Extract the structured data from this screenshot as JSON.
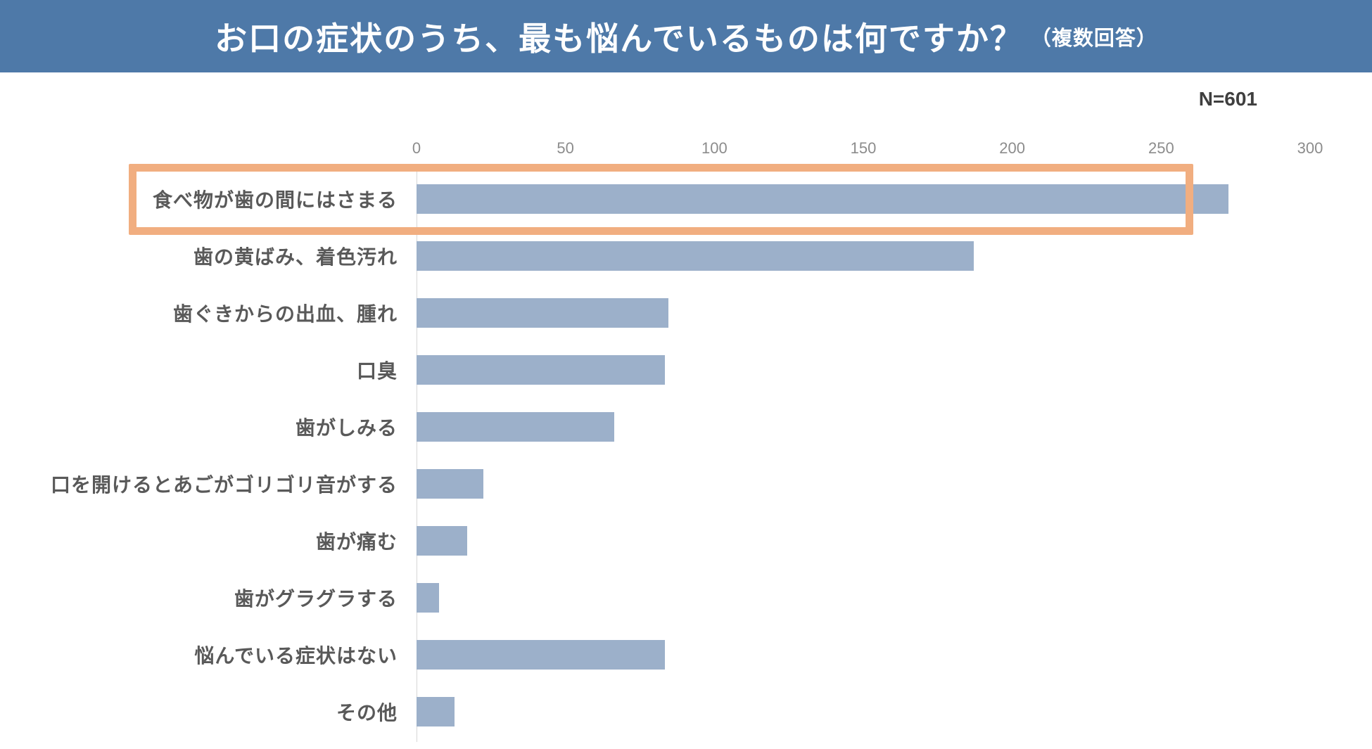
{
  "header": {
    "title": "お口の症状のうち、最も悩んでいるものは何ですか？",
    "title_suffix": "（複数回答）",
    "bg_color": "#4e79a8"
  },
  "sample_size_label": "N=601",
  "chart_data": {
    "type": "bar",
    "orientation": "horizontal",
    "title": "お口の症状のうち、最も悩んでいるものは何ですか？（複数回答）",
    "sample_size": "N=601",
    "categories": [
      "食べ物が歯の間にはさまる",
      "歯の黄ばみ、着色汚れ",
      "歯ぐきからの出血、腫れ",
      "口臭",
      "歯がしみる",
      "口を開けるとあごがゴリゴリ音がする",
      "歯が痛む",
      "歯がグラグラする",
      "悩んでいる症状はない",
      "その他"
    ],
    "values": [
      255,
      175,
      79,
      78,
      62,
      21,
      16,
      7,
      78,
      12
    ],
    "xlim": [
      0,
      300
    ],
    "x_ticks": [
      0,
      50,
      100,
      150,
      200,
      250,
      300
    ],
    "xlabel": "",
    "ylabel": "",
    "grid": false,
    "legend": "none",
    "bar_color": "#9cb0ca",
    "axis_line_color": "#d6d6d6",
    "tick_label_color": "#8c8c8c",
    "category_label_color": "#595959",
    "highlight": {
      "index": 0,
      "box_color": "#f1ae80"
    }
  }
}
